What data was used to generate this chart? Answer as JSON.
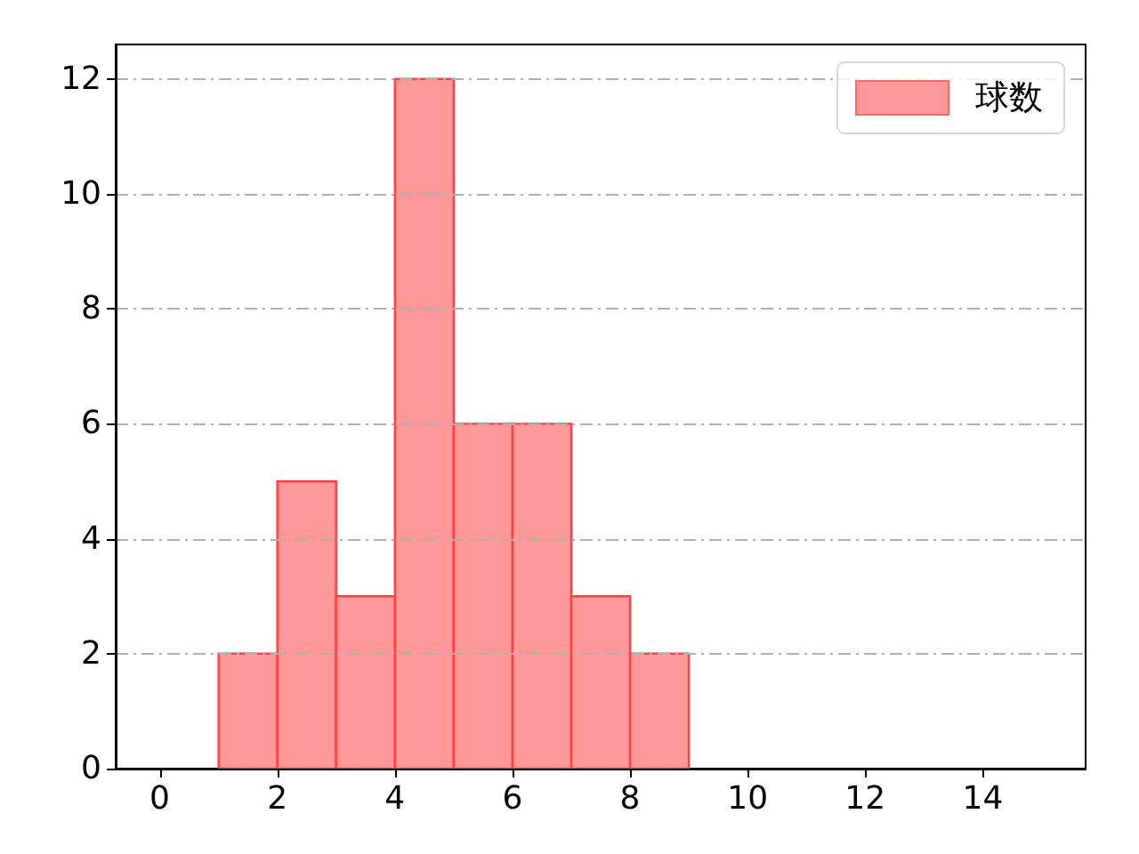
{
  "chart_data": {
    "type": "histogram",
    "bins": [
      1,
      2,
      3,
      4,
      5,
      6,
      7,
      8,
      9
    ],
    "series": [
      {
        "name": "球数",
        "color": "#ff9999",
        "values": [
          2,
          5,
          3,
          12,
          6,
          6,
          3,
          2
        ]
      }
    ],
    "xlim": [
      -0.75,
      15.75
    ],
    "xticks": [
      0,
      2,
      4,
      6,
      8,
      10,
      12,
      14
    ],
    "ylim": [
      0,
      12.6
    ],
    "yticks": [
      0,
      2,
      4,
      6,
      8,
      10,
      12
    ],
    "grid": "y",
    "legend": "top right"
  }
}
